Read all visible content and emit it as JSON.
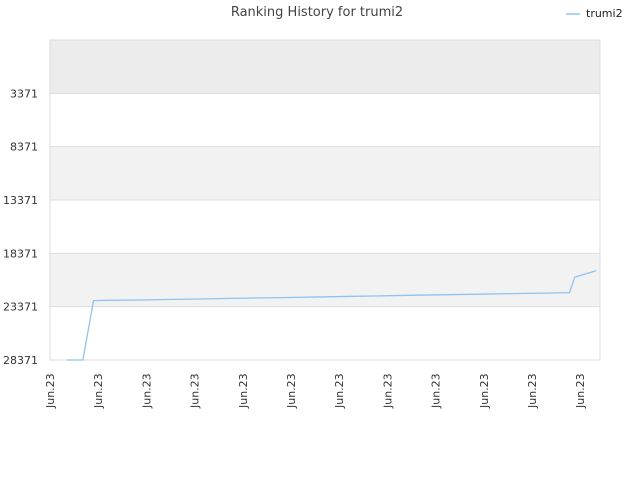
{
  "chart_data": {
    "type": "line",
    "title": "Ranking History for trumi2",
    "legend": {
      "position": "top-right",
      "entries": [
        "trumi2"
      ]
    },
    "y_axis": {
      "inverted": true,
      "range": [
        -1629,
        28371
      ],
      "tick_labels": [
        "3371",
        "8371",
        "13371",
        "18371",
        "23371",
        "28371"
      ],
      "tick_values": [
        3371,
        8371,
        13371,
        18371,
        23371,
        28371
      ]
    },
    "x_axis": {
      "tick_labels": [
        "Jun.23",
        "Jun.23",
        "Jun.23",
        "Jun.23",
        "Jun.23",
        "Jun.23",
        "Jun.23",
        "Jun.23",
        "Jun.23",
        "Jun.23",
        "Jun.23",
        "Jun.23"
      ]
    },
    "grid": {
      "horizontal": true,
      "vertical": false,
      "alternating_bands": true
    },
    "colors": {
      "line": "#90c3f0",
      "band_shaded": "#f2f2f2",
      "band_top": "#ececec",
      "band_plain": "#ffffff",
      "grid": "#dddddd"
    },
    "series": [
      {
        "name": "trumi2",
        "x": [
          0.0,
          0.03,
          0.05,
          0.08,
          0.14,
          0.19,
          0.25,
          0.31,
          0.37,
          0.43,
          0.49,
          0.54,
          0.6,
          0.66,
          0.72,
          0.78,
          0.84,
          0.9,
          0.95,
          0.96,
          1.0
        ],
        "values": [
          28371,
          28371,
          22800,
          22770,
          22750,
          22700,
          22650,
          22600,
          22550,
          22500,
          22450,
          22400,
          22350,
          22300,
          22250,
          22200,
          22150,
          22100,
          22050,
          20600,
          20000
        ]
      }
    ]
  }
}
